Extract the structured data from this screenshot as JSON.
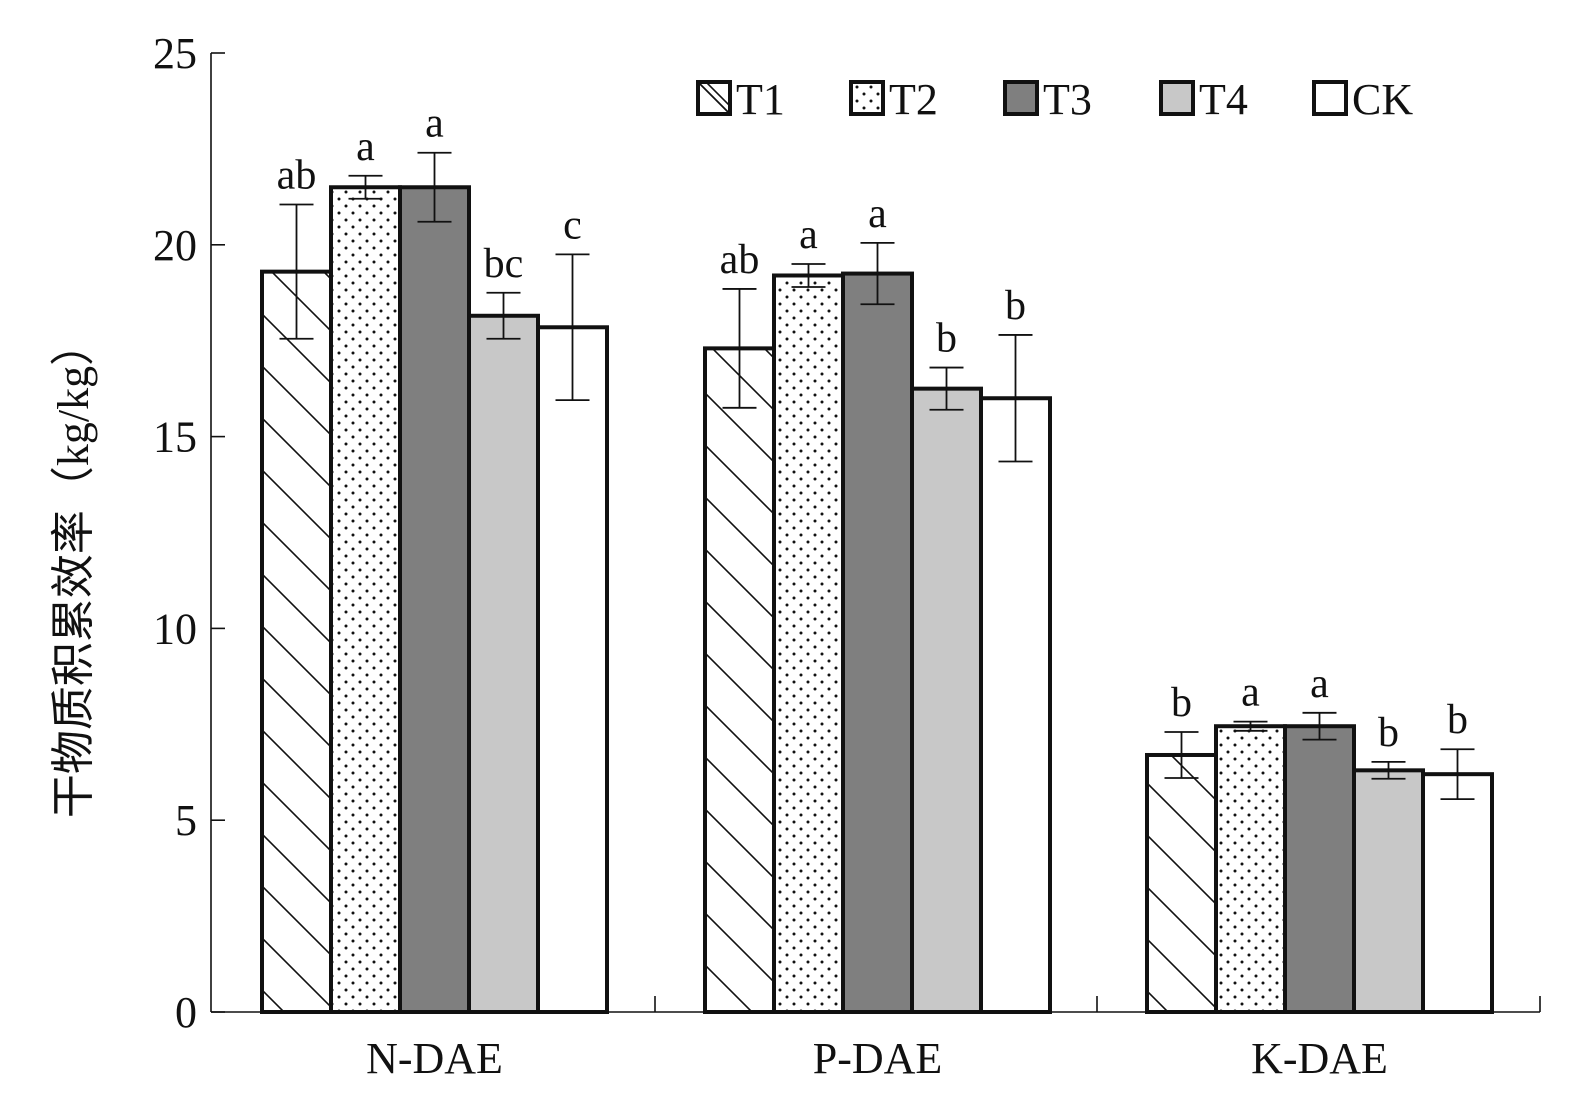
{
  "chart_data": {
    "type": "bar",
    "ylabel": "干物质积累效率（kg/kg）",
    "xlabel": "",
    "ylim": [
      0,
      25
    ],
    "yticks": [
      "0",
      "5",
      "10",
      "15",
      "20",
      "25"
    ],
    "categories": [
      "N-DAE",
      "P-DAE",
      "K-DAE"
    ],
    "legend_position": "top-right",
    "series": [
      {
        "name": "T1",
        "pattern": "diagonal-hatch",
        "fill": "#ffffff",
        "values": [
          19.3,
          17.3,
          6.7
        ],
        "errors": [
          1.75,
          1.55,
          0.6
        ],
        "labels": [
          "ab",
          "ab",
          "b"
        ]
      },
      {
        "name": "T2",
        "pattern": "dots",
        "fill": "#ffffff",
        "values": [
          21.5,
          19.2,
          7.45
        ],
        "errors": [
          0.3,
          0.3,
          0.12
        ],
        "labels": [
          "a",
          "a",
          "a"
        ]
      },
      {
        "name": "T3",
        "pattern": "solid",
        "fill": "#7f7f7f",
        "values": [
          21.5,
          19.25,
          7.45
        ],
        "errors": [
          0.9,
          0.8,
          0.35
        ],
        "labels": [
          "a",
          "a",
          "a"
        ]
      },
      {
        "name": "T4",
        "pattern": "solid",
        "fill": "#c8c8c8",
        "values": [
          18.15,
          16.25,
          6.3
        ],
        "errors": [
          0.6,
          0.55,
          0.22
        ],
        "labels": [
          "bc",
          "b",
          "b"
        ]
      },
      {
        "name": "CK",
        "pattern": "solid",
        "fill": "#ffffff",
        "values": [
          17.85,
          16.0,
          6.2
        ],
        "errors": [
          1.9,
          1.65,
          0.65
        ],
        "labels": [
          "c",
          "b",
          "b"
        ]
      }
    ]
  }
}
